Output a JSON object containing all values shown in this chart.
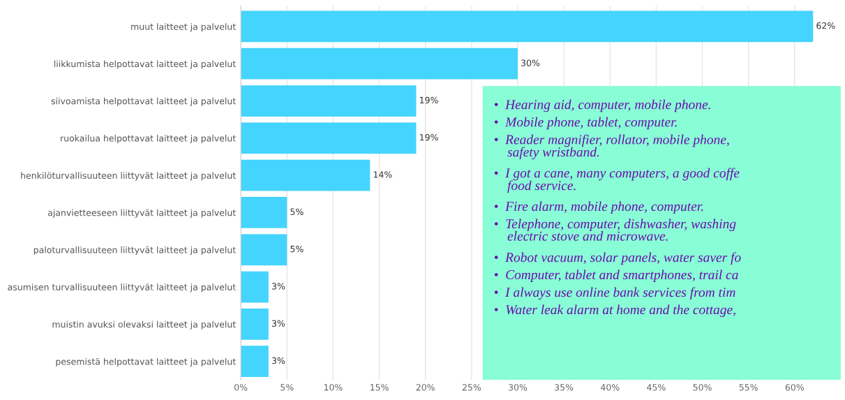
{
  "chart_data": {
    "type": "bar",
    "orientation": "horizontal",
    "categories": [
      "muut laitteet ja palvelut",
      "liikkumista helpottavat laitteet ja palvelut",
      "siivoamista helpottavat laitteet ja palvelut",
      "ruokailua helpottavat laitteet ja palvelut",
      "henkilöturvallisuuteen liittyvät laitteet ja palvelut",
      "ajanvietteeseen liittyvät laitteet ja palvelut",
      "paloturvallisuuteen liittyvät laitteet ja palvelut",
      "asumisen turvallisuuteen liittyvät laitteet ja palvelut",
      "muistin avuksi olevaksi laitteet ja palvelut",
      "pesemistä helpottavat laitteet ja palvelut"
    ],
    "values": [
      62,
      30,
      19,
      19,
      14,
      5,
      5,
      3,
      3,
      3
    ],
    "value_labels": [
      "62%",
      "30%",
      "19%",
      "19%",
      "14%",
      "5%",
      "5%",
      "3%",
      "3%",
      "3%"
    ],
    "color": "#45d4fd",
    "xlim": [
      0,
      65
    ],
    "xticks": [
      {
        "value": 0,
        "label": "0%"
      },
      {
        "value": 5,
        "label": "5%"
      },
      {
        "value": 10,
        "label": "10%"
      },
      {
        "value": 15,
        "label": "15%"
      },
      {
        "value": 20,
        "label": "20%"
      },
      {
        "value": 25,
        "label": "25%"
      },
      {
        "value": 30,
        "label": "30%"
      },
      {
        "value": 35,
        "label": "35%"
      },
      {
        "value": 40,
        "label": "40%"
      },
      {
        "value": 45,
        "label": "45%"
      },
      {
        "value": 50,
        "label": "50%"
      },
      {
        "value": 55,
        "label": "55%"
      },
      {
        "value": 60,
        "label": "60%"
      }
    ],
    "grid": "x",
    "annotations": [
      "•  Hearing aid, computer, mobile phone.",
      "•  Mobile phone, tablet, computer.",
      "•  Reader magnifier, rollator, mobile phone,\n    safety wristband.",
      "•  I got a cane, many computers, a good coffe\n    food service.",
      "•  Fire alarm, mobile phone, computer.",
      "•  Telephone, computer, dishwasher, washing\n    electric stove and microwave.",
      "•  Robot vacuum, solar panels, water saver fo",
      "•  Computer, tablet and smartphones, trail ca",
      "•  I always use online bank services from tim",
      "•  Water leak alarm at home and the cottage,"
    ]
  }
}
